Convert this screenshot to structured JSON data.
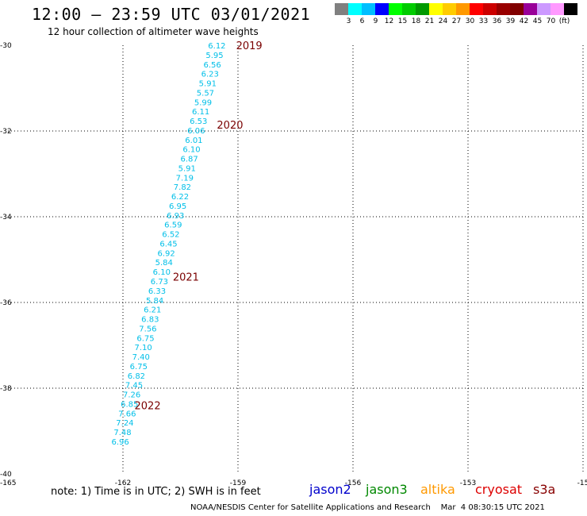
{
  "title": "12:00 – 23:59 UTC 03/01/2021",
  "subtitle": "12 hour collection of altimeter wave heights",
  "colorbar": {
    "colors": [
      "#808080",
      "#00ffff",
      "#00bfff",
      "#0000ff",
      "#00ff00",
      "#00cc00",
      "#009900",
      "#ffff00",
      "#ffcc00",
      "#ff9900",
      "#ff0000",
      "#cc0000",
      "#990000",
      "#800000",
      "#990099",
      "#cc99ff",
      "#ff99ff",
      "#000000"
    ],
    "labels": [
      "3",
      "6",
      "9",
      "12",
      "15",
      "18",
      "21",
      "24",
      "27",
      "30",
      "33",
      "36",
      "39",
      "42",
      "45",
      "70",
      "(ft)"
    ]
  },
  "axes": {
    "lon_labels": [
      "-165",
      "-162",
      "-159",
      "-156",
      "-153",
      "-15"
    ],
    "lat_labels": [
      "-30",
      "-32",
      "-34",
      "-36",
      "-38",
      "-40"
    ]
  },
  "chart_data": {
    "type": "scatter",
    "x_range": [
      -165,
      -150
    ],
    "y_range": [
      -40,
      -30
    ],
    "points": [
      {
        "lon": -159.55,
        "lat": -30.0,
        "label": "6.12"
      },
      {
        "lon": -159.61,
        "lat": -30.22,
        "label": "5.95"
      },
      {
        "lon": -159.67,
        "lat": -30.44,
        "label": "6.56"
      },
      {
        "lon": -159.73,
        "lat": -30.66,
        "label": "6.23"
      },
      {
        "lon": -159.79,
        "lat": -30.88,
        "label": "5.91"
      },
      {
        "lon": -159.85,
        "lat": -31.1,
        "label": "5.57"
      },
      {
        "lon": -159.91,
        "lat": -31.32,
        "label": "5.99"
      },
      {
        "lon": -159.97,
        "lat": -31.54,
        "label": "6.11"
      },
      {
        "lon": -160.03,
        "lat": -31.76,
        "label": "6.53"
      },
      {
        "lon": -160.09,
        "lat": -31.98,
        "label": "6.06"
      },
      {
        "lon": -160.15,
        "lat": -32.2,
        "label": "6.01"
      },
      {
        "lon": -160.21,
        "lat": -32.42,
        "label": "6.10"
      },
      {
        "lon": -160.27,
        "lat": -32.64,
        "label": "6.87"
      },
      {
        "lon": -160.33,
        "lat": -32.86,
        "label": "5.91"
      },
      {
        "lon": -160.39,
        "lat": -33.08,
        "label": "7.19"
      },
      {
        "lon": -160.45,
        "lat": -33.3,
        "label": "7.82"
      },
      {
        "lon": -160.51,
        "lat": -33.52,
        "label": "6.22"
      },
      {
        "lon": -160.57,
        "lat": -33.74,
        "label": "6.95"
      },
      {
        "lon": -160.63,
        "lat": -33.96,
        "label": "6.93"
      },
      {
        "lon": -160.69,
        "lat": -34.18,
        "label": "6.59"
      },
      {
        "lon": -160.75,
        "lat": -34.4,
        "label": "6.52"
      },
      {
        "lon": -160.81,
        "lat": -34.62,
        "label": "6.45"
      },
      {
        "lon": -160.87,
        "lat": -34.84,
        "label": "6.92"
      },
      {
        "lon": -160.93,
        "lat": -35.06,
        "label": "5.84"
      },
      {
        "lon": -160.99,
        "lat": -35.28,
        "label": "6.10"
      },
      {
        "lon": -161.05,
        "lat": -35.5,
        "label": "6.73"
      },
      {
        "lon": -161.11,
        "lat": -35.72,
        "label": "6.33"
      },
      {
        "lon": -161.17,
        "lat": -35.94,
        "label": "5.84"
      },
      {
        "lon": -161.23,
        "lat": -36.16,
        "label": "6.21"
      },
      {
        "lon": -161.29,
        "lat": -36.38,
        "label": "6.83"
      },
      {
        "lon": -161.35,
        "lat": -36.6,
        "label": "7.56"
      },
      {
        "lon": -161.41,
        "lat": -36.82,
        "label": "6.75"
      },
      {
        "lon": -161.47,
        "lat": -37.04,
        "label": "7.10"
      },
      {
        "lon": -161.53,
        "lat": -37.26,
        "label": "7.40"
      },
      {
        "lon": -161.59,
        "lat": -37.48,
        "label": "6.75"
      },
      {
        "lon": -161.65,
        "lat": -37.7,
        "label": "6.82"
      },
      {
        "lon": -161.71,
        "lat": -37.92,
        "label": "7.45"
      },
      {
        "lon": -161.77,
        "lat": -38.14,
        "label": "7.26"
      },
      {
        "lon": -161.83,
        "lat": -38.36,
        "label": "6.85"
      },
      {
        "lon": -161.89,
        "lat": -38.58,
        "label": "7.66"
      },
      {
        "lon": -161.95,
        "lat": -38.8,
        "label": "7.24"
      },
      {
        "lon": -162.01,
        "lat": -39.02,
        "label": "7.48"
      },
      {
        "lon": -162.07,
        "lat": -39.24,
        "label": "6.96"
      }
    ],
    "time_labels": [
      {
        "lon": -159.05,
        "lat": -30.0,
        "label": "2019"
      },
      {
        "lon": -159.55,
        "lat": -31.85,
        "label": "2020"
      },
      {
        "lon": -160.7,
        "lat": -35.4,
        "label": "2021"
      },
      {
        "lon": -161.7,
        "lat": -38.4,
        "label": "2022"
      }
    ]
  },
  "note": "note: 1) Time is in UTC; 2) SWH is in feet",
  "satellites": [
    {
      "name": "jason2",
      "color": "#0000cc"
    },
    {
      "name": "jason3",
      "color": "#008800"
    },
    {
      "name": "altika",
      "color": "#ff9900"
    },
    {
      "name": "cryosat",
      "color": "#dd0000"
    },
    {
      "name": "s3a",
      "color": "#880000"
    }
  ],
  "credit": "NOAA/NESDIS Center for Satellite Applications and Research    Mar  4 08:30:15 UTC 2021"
}
